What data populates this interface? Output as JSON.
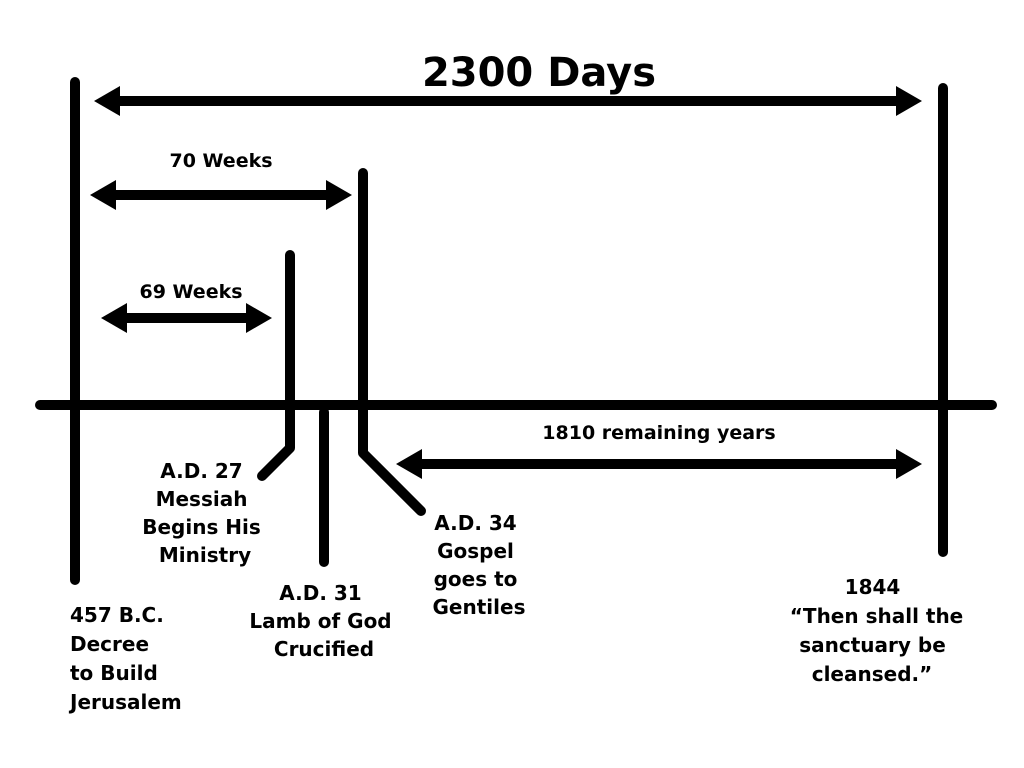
{
  "title": "2300 Days",
  "spans": {
    "seventy_weeks": "70 Weeks",
    "sixty_nine_weeks": "69 Weeks",
    "remaining_years": "1810 remaining years"
  },
  "events": {
    "decree": [
      "457 B.C.",
      "Decree",
      "to Build",
      "Jerusalem"
    ],
    "messiah": [
      "A.D. 27",
      "Messiah",
      "Begins His",
      "Ministry"
    ],
    "crucified": [
      "A.D. 31",
      "Lamb of God",
      "Crucified"
    ],
    "gospel": [
      "A.D. 34",
      "Gospel",
      "goes to",
      "Gentiles"
    ],
    "cleansed": [
      "1844",
      "“Then shall the",
      "sanctuary be",
      "cleansed.”"
    ]
  }
}
